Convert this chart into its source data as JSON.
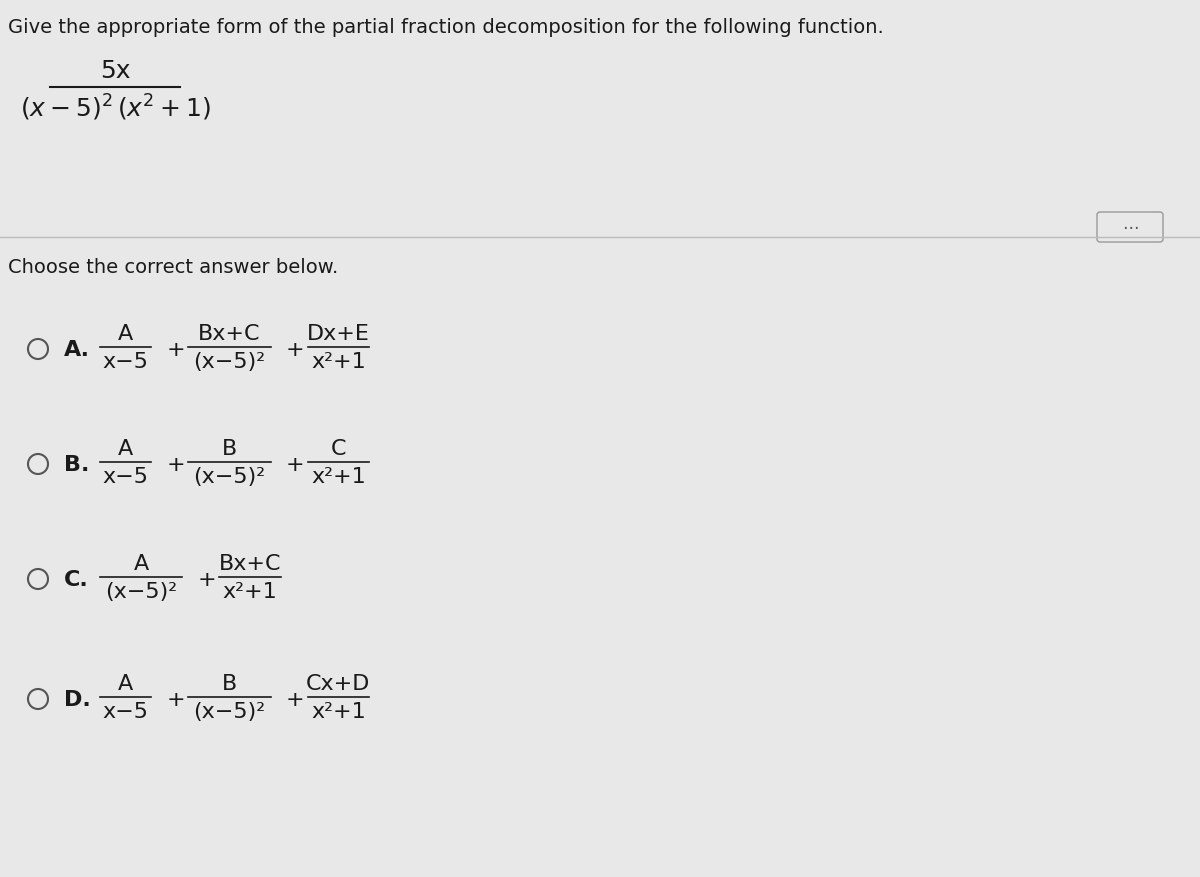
{
  "bg_color": "#e8e8e8",
  "text_color": "#1a1a1a",
  "title": "Give the appropriate form of the partial fraction decomposition for the following function.",
  "choose_text": "Choose the correct answer below.",
  "options": [
    {
      "label": "A.",
      "parts": [
        {
          "num": "A",
          "den": "x−5"
        },
        "+",
        {
          "num": "Bx+C",
          "den": "(x−5)²"
        },
        "+",
        {
          "num": "Dx+E",
          "den": "x²+1"
        }
      ]
    },
    {
      "label": "B.",
      "parts": [
        {
          "num": "A",
          "den": "x−5"
        },
        "+",
        {
          "num": "B",
          "den": "(x−5)²"
        },
        "+",
        {
          "num": "C",
          "den": "x²+1"
        }
      ]
    },
    {
      "label": "C.",
      "parts": [
        {
          "num": "A",
          "den": "(x−5)²"
        },
        "+",
        {
          "num": "Bx+C",
          "den": "x²+1"
        }
      ]
    },
    {
      "label": "D.",
      "parts": [
        {
          "num": "A",
          "den": "x−5"
        },
        "+",
        {
          "num": "B",
          "den": "(x−5)²"
        },
        "+",
        {
          "num": "Cx+D",
          "den": "x²+1"
        }
      ]
    }
  ]
}
